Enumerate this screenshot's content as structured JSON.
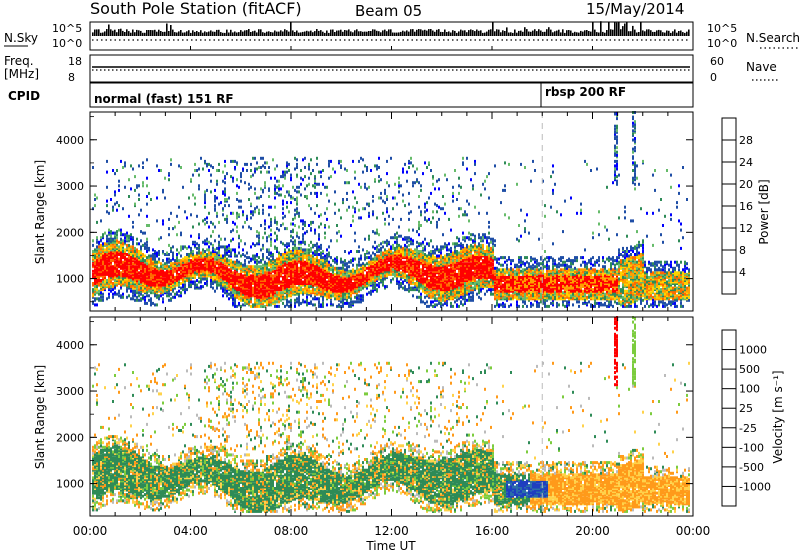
{
  "header": {
    "station": "South Pole Station (fitACF)",
    "beam": "Beam 05",
    "date": "15/May/2014"
  },
  "strips": {
    "nsky_label": "N.Sky",
    "nsearch_label": "N.Search",
    "ticks_left": [
      "10^5",
      "10^0"
    ],
    "ticks_right": [
      "10^5",
      "10^0"
    ],
    "freq_label_1": "Freq.",
    "freq_label_2": "[MHz]",
    "freq_ticks": [
      "18",
      "8"
    ],
    "nave_label": "Nave",
    "nave_ticks": [
      "60",
      "0"
    ],
    "cpid_label": "CPID",
    "cpid_modes": [
      "normal (fast) 151 RF",
      "rbsp 200 RF"
    ]
  },
  "colors": {
    "power_scale": [
      "#0000ff",
      "#1f4ea6",
      "#2e8b57",
      "#66bb6a",
      "#ffd400",
      "#ffa000",
      "#ff6a00",
      "#ff0000"
    ],
    "velocity_scale": [
      "#1f3fbf",
      "#2b6fa8",
      "#2e8b57",
      "#7ccc3e",
      "#bbbbbb",
      "#ffd24a",
      "#ff9a1a",
      "#ff6a00",
      "#ff0000"
    ]
  },
  "chart_data": [
    {
      "type": "heatmap",
      "title": "Power",
      "ylabel": "Slant Range [km]",
      "xlabel": "Time UT",
      "x_ticks": [
        "00:00",
        "04:00",
        "08:00",
        "12:00",
        "16:00",
        "20:00",
        "00:00"
      ],
      "y_ticks": [
        "1000",
        "2000",
        "3000",
        "4000"
      ],
      "ylim": [
        300,
        4600
      ],
      "colorbar_label": "Power [dB]",
      "colorbar_ticks": [
        "4",
        "8",
        "12",
        "16",
        "20",
        "24",
        "28"
      ],
      "mode_change_ut": 18.0
    },
    {
      "type": "heatmap",
      "title": "Velocity",
      "ylabel": "Slant Range [km]",
      "xlabel": "Time UT",
      "x_ticks": [
        "00:00",
        "04:00",
        "08:00",
        "12:00",
        "16:00",
        "20:00",
        "00:00"
      ],
      "y_ticks": [
        "1000",
        "2000",
        "3000",
        "4000"
      ],
      "ylim": [
        300,
        4600
      ],
      "colorbar_label": "Velocity [m s⁻¹]",
      "colorbar_ticks": [
        "1000",
        "500",
        "100",
        "25",
        "-25",
        "-100",
        "-500",
        "-1000"
      ],
      "mode_change_ut": 18.0
    }
  ]
}
